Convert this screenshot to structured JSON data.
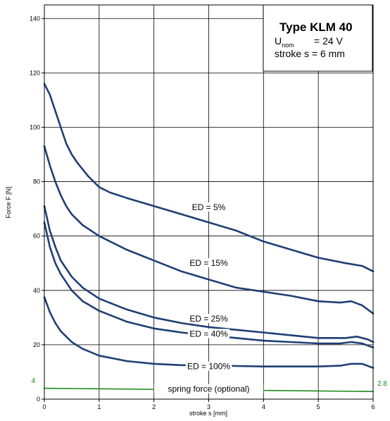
{
  "chart_data": {
    "type": "line",
    "xlabel": "stroke s [mm]",
    "ylabel": "Force F [N]",
    "xlim": [
      0,
      6
    ],
    "ylim": [
      0,
      145
    ],
    "x_ticks": [
      0,
      1,
      2,
      3,
      4,
      5,
      6
    ],
    "y_ticks": [
      0,
      20,
      40,
      60,
      80,
      100,
      120,
      140
    ],
    "grid": true,
    "series": [
      {
        "name": "ED = 5%",
        "color": "#1f3f74",
        "x": [
          0,
          0.1,
          0.2,
          0.3,
          0.4,
          0.5,
          0.6,
          0.8,
          1.0,
          1.2,
          1.5,
          2.0,
          2.5,
          3.0,
          3.5,
          4.0,
          4.5,
          5.0,
          5.5,
          5.8,
          6.0
        ],
        "y": [
          116,
          112,
          106,
          100,
          94,
          90,
          87,
          82,
          78,
          76,
          74,
          71,
          68,
          65,
          62,
          58,
          55,
          52,
          50,
          49,
          47
        ]
      },
      {
        "name": "ED = 15%",
        "color": "#1f3f74",
        "x": [
          0,
          0.1,
          0.2,
          0.3,
          0.4,
          0.5,
          0.7,
          1.0,
          1.5,
          2.0,
          2.5,
          3.0,
          3.5,
          4.0,
          4.5,
          5.0,
          5.4,
          5.6,
          5.8,
          6.0
        ],
        "y": [
          93,
          86,
          80,
          75,
          71,
          68,
          64,
          60,
          55,
          51,
          47,
          44,
          41,
          39.5,
          38,
          36,
          35.5,
          36,
          34.5,
          31.5
        ]
      },
      {
        "name": "ED = 25%",
        "color": "#1f3f74",
        "x": [
          0,
          0.1,
          0.2,
          0.3,
          0.5,
          0.7,
          1.0,
          1.5,
          2.0,
          2.5,
          3.0,
          3.5,
          4.0,
          4.5,
          5.0,
          5.5,
          5.7,
          5.9,
          6.0
        ],
        "y": [
          71,
          62,
          56,
          51,
          45,
          41,
          37,
          33,
          30,
          28,
          26.5,
          25.5,
          24.5,
          23.5,
          22.5,
          22.5,
          23,
          22,
          21
        ]
      },
      {
        "name": "ED = 40%",
        "color": "#1f3f74",
        "x": [
          0,
          0.1,
          0.2,
          0.3,
          0.5,
          0.7,
          1.0,
          1.5,
          2.0,
          2.5,
          3.0,
          3.5,
          4.0,
          4.5,
          5.0,
          5.4,
          5.6,
          5.8,
          6.0
        ],
        "y": [
          65,
          56,
          50,
          46,
          40,
          36,
          32.5,
          28.5,
          26,
          24.5,
          23.5,
          22.5,
          21.5,
          21,
          20.5,
          20.5,
          21,
          20.5,
          19
        ]
      },
      {
        "name": "ED = 100%",
        "color": "#1f3f74",
        "x": [
          0,
          0.1,
          0.2,
          0.3,
          0.5,
          0.7,
          1.0,
          1.5,
          2.0,
          2.5,
          3.0,
          3.5,
          4.0,
          4.5,
          5.0,
          5.4,
          5.6,
          5.8,
          6.0
        ],
        "y": [
          37.5,
          32,
          28,
          25,
          21,
          18.5,
          16,
          14,
          13,
          12.5,
          12.5,
          12.2,
          12,
          12,
          12,
          12.3,
          13,
          13,
          11.5
        ]
      },
      {
        "name": "spring force (optional)",
        "color": "#1a8a1a",
        "x": [
          0,
          6
        ],
        "y": [
          4,
          2.8
        ]
      }
    ],
    "curve_labels": [
      {
        "text": "ED = 5%",
        "x": 3.0,
        "y": 70
      },
      {
        "text": "ED = 15%",
        "x": 3.0,
        "y": 49.5
      },
      {
        "text": "ED = 25%",
        "x": 3.0,
        "y": 29
      },
      {
        "text": "ED = 40%",
        "x": 3.0,
        "y": 23.5
      },
      {
        "text": "ED = 100%",
        "x": 3.0,
        "y": 11.5
      },
      {
        "text": "spring force (optional)",
        "x": 3.0,
        "y": 3.2
      }
    ],
    "spring_end_labels": {
      "start": "4",
      "end": "2.8"
    },
    "info_box": {
      "title": "Type  KLM 40",
      "unom_main": "U",
      "unom_sub": "nom",
      "unom_value": "= 24 V",
      "stroke_line": "stroke s = 6 mm"
    }
  }
}
